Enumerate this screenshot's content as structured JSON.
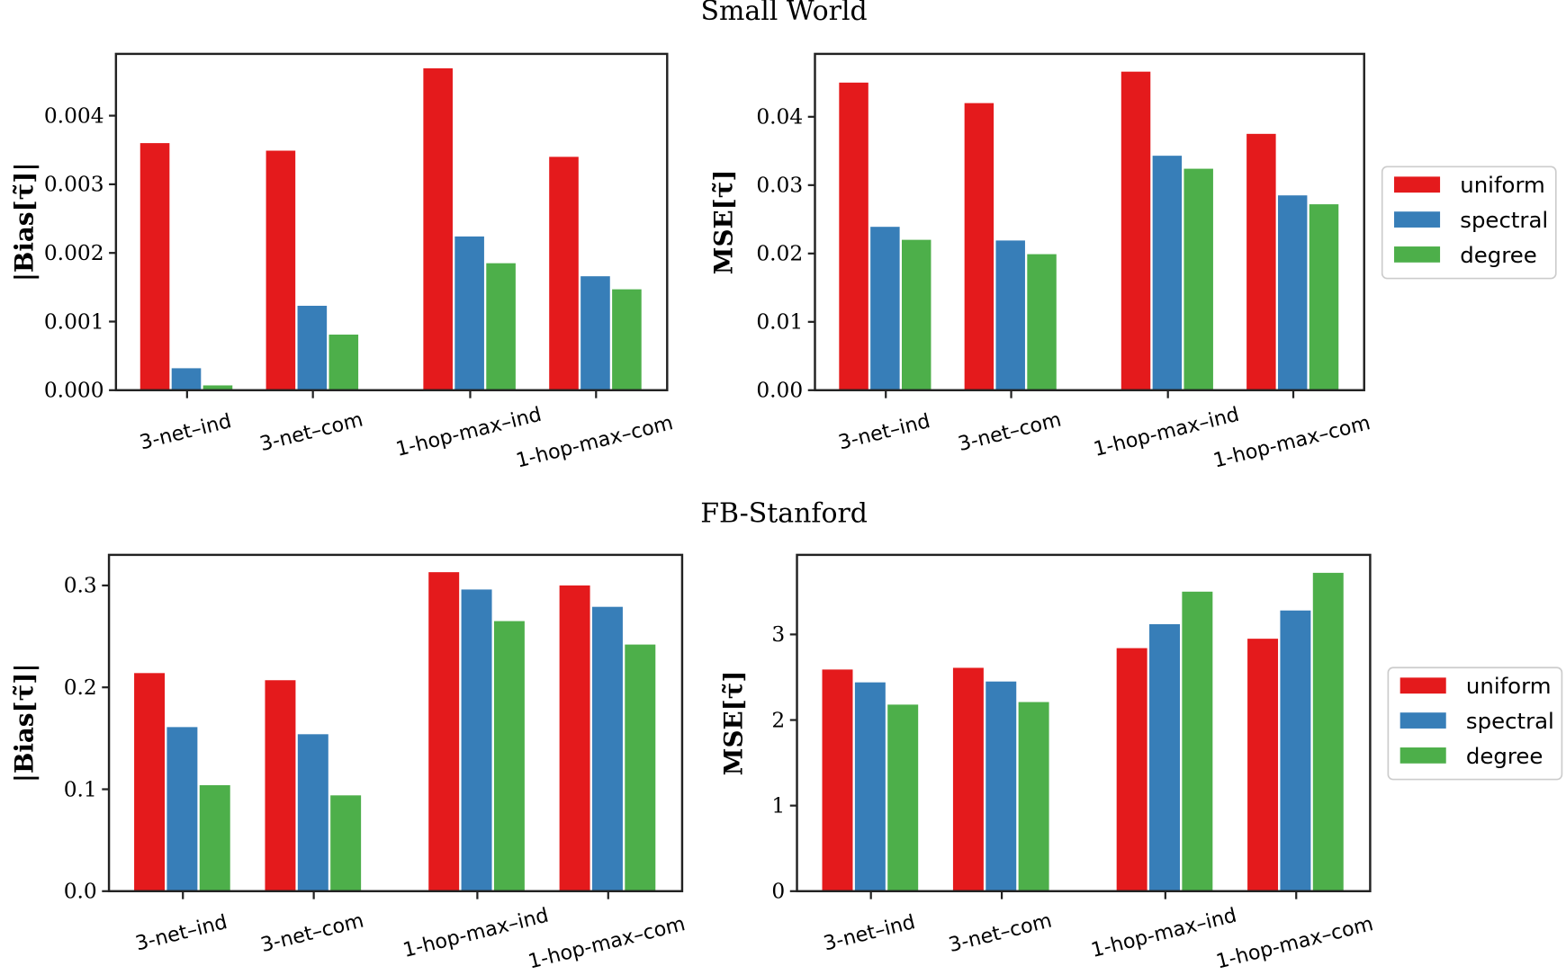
{
  "titles": [
    "Small World",
    "FB-Stanford"
  ],
  "colors": {
    "uniform": "#e41a1c",
    "spectral": "#377eb8",
    "degree": "#4daf4a"
  },
  "legend": [
    "uniform",
    "spectral",
    "degree"
  ],
  "chart_data": [
    {
      "type": "bar",
      "group_title": "Small World",
      "ylabel": "|Bias[τ̃]|",
      "categories": [
        "3-net–ind",
        "3-net–com",
        "1-hop-max–ind",
        "1-hop-max–com"
      ],
      "ylim": [
        0,
        0.0049
      ],
      "yticks": [
        "0.000",
        "0.001",
        "0.002",
        "0.003",
        "0.004"
      ],
      "series": [
        {
          "name": "uniform",
          "values": [
            0.0036,
            0.00349,
            0.00469,
            0.0034
          ]
        },
        {
          "name": "spectral",
          "values": [
            0.00032,
            0.00123,
            0.00224,
            0.00166
          ]
        },
        {
          "name": "degree",
          "values": [
            7e-05,
            0.00081,
            0.00185,
            0.00147
          ]
        }
      ],
      "legend": "none"
    },
    {
      "type": "bar",
      "group_title": "Small World",
      "ylabel": "MSE[τ̃]",
      "categories": [
        "3-net–ind",
        "3-net–com",
        "1-hop-max–ind",
        "1-hop-max–com"
      ],
      "ylim": [
        0,
        0.0492
      ],
      "yticks": [
        "0.00",
        "0.01",
        "0.02",
        "0.03",
        "0.04"
      ],
      "series": [
        {
          "name": "uniform",
          "values": [
            0.045,
            0.042,
            0.0466,
            0.0375
          ]
        },
        {
          "name": "spectral",
          "values": [
            0.0239,
            0.0219,
            0.0343,
            0.0285
          ]
        },
        {
          "name": "degree",
          "values": [
            0.022,
            0.0199,
            0.0324,
            0.0272
          ]
        }
      ],
      "legend": "right"
    },
    {
      "type": "bar",
      "group_title": "FB-Stanford",
      "ylabel": "|Bias[τ̃]|",
      "categories": [
        "3-net–ind",
        "3-net–com",
        "1-hop-max–ind",
        "1-hop-max–com"
      ],
      "ylim": [
        0,
        0.33
      ],
      "yticks": [
        "0.0",
        "0.1",
        "0.2",
        "0.3"
      ],
      "series": [
        {
          "name": "uniform",
          "values": [
            0.214,
            0.207,
            0.313,
            0.3
          ]
        },
        {
          "name": "spectral",
          "values": [
            0.161,
            0.154,
            0.296,
            0.279
          ]
        },
        {
          "name": "degree",
          "values": [
            0.104,
            0.094,
            0.265,
            0.242
          ]
        }
      ],
      "legend": "none"
    },
    {
      "type": "bar",
      "group_title": "FB-Stanford",
      "ylabel": "MSE[τ̃]",
      "categories": [
        "3-net–ind",
        "3-net–com",
        "1-hop-max–ind",
        "1-hop-max–com"
      ],
      "ylim": [
        0,
        3.93
      ],
      "yticks": [
        "0",
        "1",
        "2",
        "3"
      ],
      "series": [
        {
          "name": "uniform",
          "values": [
            2.59,
            2.61,
            2.84,
            2.95
          ]
        },
        {
          "name": "spectral",
          "values": [
            2.44,
            2.45,
            3.12,
            3.28
          ]
        },
        {
          "name": "degree",
          "values": [
            2.18,
            2.21,
            3.5,
            3.72
          ]
        }
      ],
      "legend": "right"
    }
  ]
}
